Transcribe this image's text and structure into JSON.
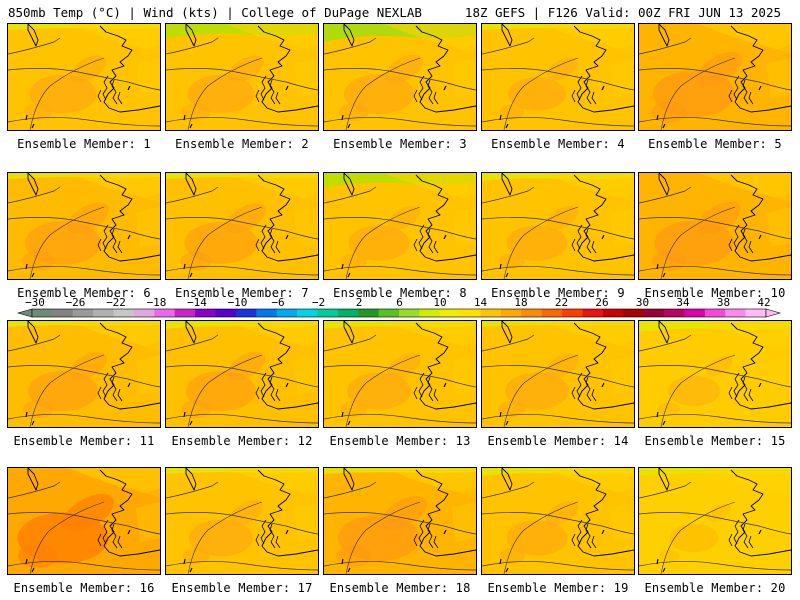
{
  "header": {
    "left_text": "850mb Temp (°C) | Wind (kts) | College of DuPage NEXLAB",
    "right_text": "18Z GEFS | F126 Valid: 00Z FRI JUN 13 2025"
  },
  "colorbar": {
    "labels": [
      "−30",
      "−26",
      "−22",
      "−18",
      "−14",
      "−10",
      "−6",
      "−2",
      "2",
      "6",
      "10",
      "14",
      "18",
      "22",
      "26",
      "30",
      "34",
      "38",
      "42"
    ],
    "colors": [
      "#6e8a7a",
      "#838383",
      "#9a9a9a",
      "#b0b0b0",
      "#c6c6c6",
      "#e0a8e0",
      "#ee66ee",
      "#cc22cc",
      "#8a00c8",
      "#5500cc",
      "#1a33dd",
      "#0077ee",
      "#00aaf0",
      "#00d4e6",
      "#00cc99",
      "#00b266",
      "#229922",
      "#55c422",
      "#99dd22",
      "#ccee00",
      "#eeee00",
      "#ffe000",
      "#ffc400",
      "#ffa800",
      "#ff8c00",
      "#ff6600",
      "#ff3c00",
      "#ee1111",
      "#cc0000",
      "#aa0000",
      "#990033",
      "#bb0066",
      "#dd00aa",
      "#ff44dd",
      "#ff88ee",
      "#ffbbf6"
    ]
  },
  "panels": [
    {
      "caption": "Ensemble Member: 1",
      "dominant": "#ffc300",
      "warm": "#ffa810",
      "cool": "#e8e600",
      "coolness": 0.05,
      "warmth": 0.45
    },
    {
      "caption": "Ensemble Member: 2",
      "dominant": "#ffc300",
      "warm": "#ffa810",
      "cool": "#b8e000",
      "coolness": 0.3,
      "warmth": 0.45
    },
    {
      "caption": "Ensemble Member: 3",
      "dominant": "#ffc300",
      "warm": "#ffa810",
      "cool": "#a8dd10",
      "coolness": 0.4,
      "warmth": 0.5
    },
    {
      "caption": "Ensemble Member: 4",
      "dominant": "#ffc300",
      "warm": "#ffa810",
      "cool": "#e6e600",
      "coolness": 0.05,
      "warmth": 0.3
    },
    {
      "caption": "Ensemble Member: 5",
      "dominant": "#ffb500",
      "warm": "#ff9a10",
      "cool": "#e6e600",
      "coolness": 0.0,
      "warmth": 0.7
    },
    {
      "caption": "Ensemble Member: 6",
      "dominant": "#ffbb00",
      "warm": "#ff9f10",
      "cool": "#e6e600",
      "coolness": 0.05,
      "warmth": 0.6
    },
    {
      "caption": "Ensemble Member: 7",
      "dominant": "#ffc000",
      "warm": "#ffa010",
      "cool": "#e6e600",
      "coolness": 0.05,
      "warmth": 0.55
    },
    {
      "caption": "Ensemble Member: 8",
      "dominant": "#ffc300",
      "warm": "#ffa810",
      "cool": "#b8e000",
      "coolness": 0.3,
      "warmth": 0.35
    },
    {
      "caption": "Ensemble Member: 9",
      "dominant": "#ffc300",
      "warm": "#ffa810",
      "cool": "#e6e600",
      "coolness": 0.1,
      "warmth": 0.35
    },
    {
      "caption": "Ensemble Member: 10",
      "dominant": "#ffb500",
      "warm": "#ff9a10",
      "cool": "#e6e600",
      "coolness": 0.0,
      "warmth": 0.65
    },
    {
      "caption": "Ensemble Member: 11",
      "dominant": "#ffbd00",
      "warm": "#ffa010",
      "cool": "#e6e600",
      "coolness": 0.05,
      "warmth": 0.5
    },
    {
      "caption": "Ensemble Member: 12",
      "dominant": "#ffc000",
      "warm": "#ffa010",
      "cool": "#e6e600",
      "coolness": 0.1,
      "warmth": 0.5
    },
    {
      "caption": "Ensemble Member: 13",
      "dominant": "#ffc300",
      "warm": "#ffa810",
      "cool": "#e6e600",
      "coolness": 0.1,
      "warmth": 0.4
    },
    {
      "caption": "Ensemble Member: 14",
      "dominant": "#ffc300",
      "warm": "#ffa810",
      "cool": "#e6e600",
      "coolness": 0.05,
      "warmth": 0.4
    },
    {
      "caption": "Ensemble Member: 15",
      "dominant": "#ffcc00",
      "warm": "#ffb010",
      "cool": "#e6e600",
      "coolness": 0.2,
      "warmth": 0.2
    },
    {
      "caption": "Ensemble Member: 16",
      "dominant": "#ffa800",
      "warm": "#ff8000",
      "cool": "#ffc300",
      "coolness": 0.0,
      "warmth": 0.85
    },
    {
      "caption": "Ensemble Member: 17",
      "dominant": "#ffc300",
      "warm": "#ffa810",
      "cool": "#e6e600",
      "coolness": 0.05,
      "warmth": 0.4
    },
    {
      "caption": "Ensemble Member: 18",
      "dominant": "#ffb500",
      "warm": "#ff9a10",
      "cool": "#e6e600",
      "coolness": 0.05,
      "warmth": 0.7
    },
    {
      "caption": "Ensemble Member: 19",
      "dominant": "#ffc300",
      "warm": "#ffa810",
      "cool": "#e6e600",
      "coolness": 0.1,
      "warmth": 0.35
    },
    {
      "caption": "Ensemble Member: 20",
      "dominant": "#ffd000",
      "warm": "#ffb800",
      "cool": "#e6e600",
      "coolness": 0.1,
      "warmth": 0.15
    }
  ]
}
